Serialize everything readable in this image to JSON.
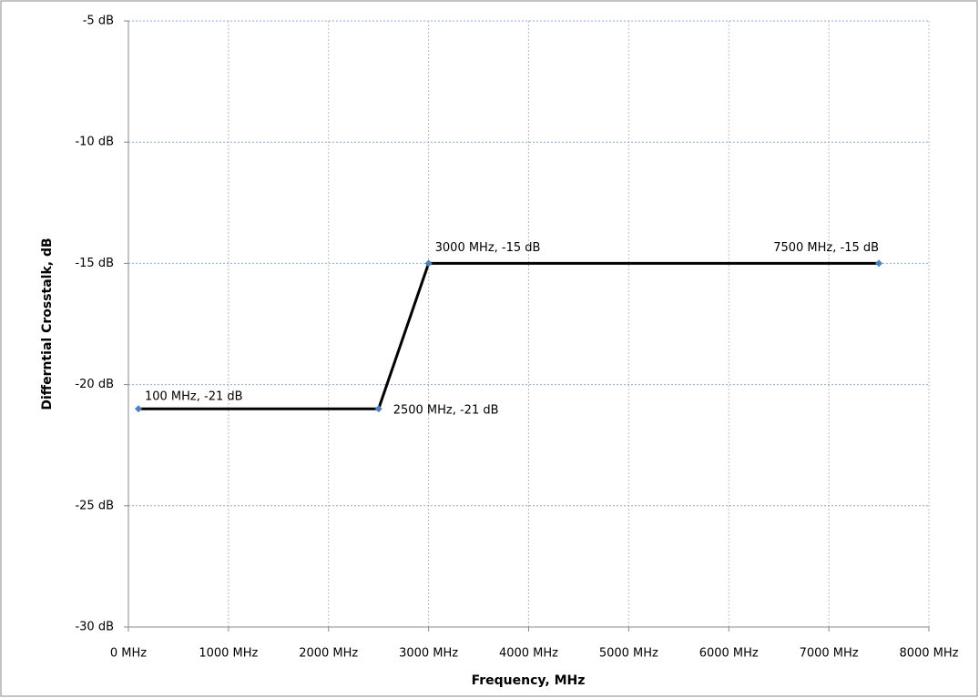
{
  "chart_data": {
    "type": "line",
    "x_label": "Frequency, MHz",
    "y_label": "Differntial Crosstalk, dB",
    "x": [
      100,
      2500,
      3000,
      7500
    ],
    "values": [
      -21,
      -21,
      -15,
      -15
    ],
    "value_labels": [
      "100 MHz, -21 dB",
      "2500 MHz, -21 dB",
      "3000 MHz, -15 dB",
      "7500 MHz, -15 dB"
    ],
    "color": "#000000",
    "marker_color": "#4f81bd",
    "xlim": [
      0,
      8000
    ],
    "xticks": [
      {
        "value": 0,
        "label": "0 MHz"
      },
      {
        "value": 1000,
        "label": "1000 MHz"
      },
      {
        "value": 2000,
        "label": "2000 MHz"
      },
      {
        "value": 3000,
        "label": "3000 MHz"
      },
      {
        "value": 4000,
        "label": "4000 MHz"
      },
      {
        "value": 5000,
        "label": "5000 MHz"
      },
      {
        "value": 6000,
        "label": "6000 MHz"
      },
      {
        "value": 7000,
        "label": "7000 MHz"
      },
      {
        "value": 8000,
        "label": "8000 MHz"
      }
    ],
    "ylim": [
      -30,
      -5
    ],
    "yticks": [
      {
        "value": -30,
        "label": "-30 dB"
      },
      {
        "value": -25,
        "label": "-25 dB"
      },
      {
        "value": -20,
        "label": "-20 dB"
      },
      {
        "value": -15,
        "label": "-15 dB"
      },
      {
        "value": -10,
        "label": "-10 dB"
      },
      {
        "value": -5,
        "label": "-5 dB"
      }
    ],
    "grid": true
  }
}
